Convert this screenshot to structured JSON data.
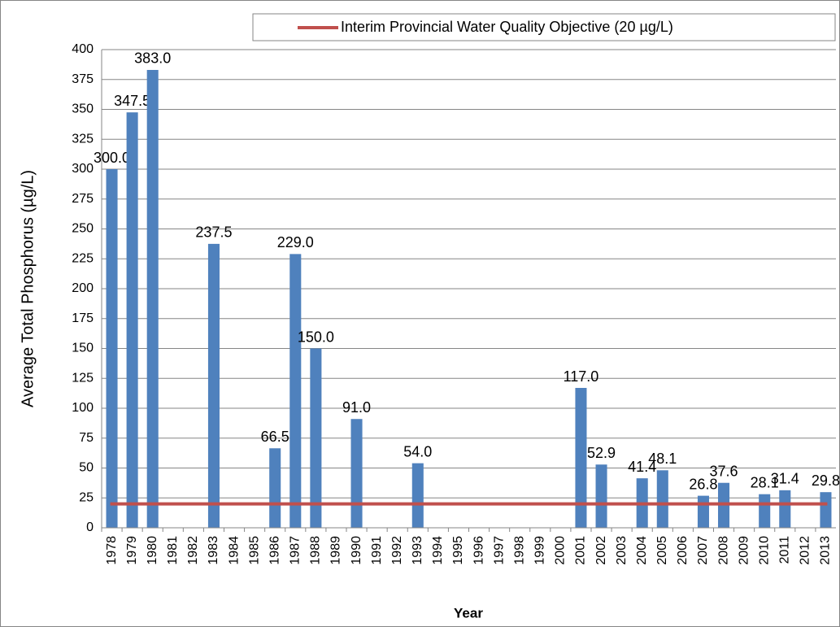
{
  "chart_data": {
    "type": "bar",
    "x_label": "Year",
    "y_label": "Average  Total Phosphorus (µg/L)",
    "categories": [
      "1978",
      "1979",
      "1980",
      "1981",
      "1982",
      "1983",
      "1984",
      "1985",
      "1986",
      "1987",
      "1988",
      "1989",
      "1990",
      "1991",
      "1992",
      "1993",
      "1994",
      "1995",
      "1996",
      "1997",
      "1998",
      "1999",
      "2000",
      "2001",
      "2002",
      "2003",
      "2004",
      "2005",
      "2006",
      "2007",
      "2008",
      "2009",
      "2010",
      "2011",
      "2012",
      "2013"
    ],
    "series": [
      {
        "type": "bar",
        "color": "#4f81bd",
        "values": [
          300,
          347.5,
          383,
          null,
          null,
          237.5,
          null,
          null,
          66.5,
          229,
          150,
          null,
          91,
          null,
          null,
          54,
          null,
          null,
          null,
          null,
          null,
          null,
          null,
          117,
          52.9,
          null,
          41.4,
          48.1,
          null,
          26.8,
          37.6,
          null,
          28.1,
          31.4,
          null,
          29.8
        ],
        "value_labels": [
          "300.0",
          "347.5",
          "383.0",
          null,
          null,
          "237.5",
          null,
          null,
          "66.5",
          "229.0",
          "150.0",
          null,
          "91.0",
          null,
          null,
          "54.0",
          null,
          null,
          null,
          null,
          null,
          null,
          null,
          "117.0",
          "52.9",
          null,
          "41.4",
          "48.1",
          null,
          "26.8",
          "37.6",
          null,
          "28.1",
          "31.4",
          null,
          "29.8"
        ]
      },
      {
        "type": "line",
        "name": "Interim Provincial Water Quality Objective (20 µg/L)",
        "color": "#c0504d",
        "values": [
          20,
          20,
          20,
          20,
          20,
          20,
          20,
          20,
          20,
          20,
          20,
          20,
          20,
          20,
          20,
          20,
          20,
          20,
          20,
          20,
          20,
          20,
          20,
          20,
          20,
          20,
          20,
          20,
          20,
          20,
          20,
          20,
          20,
          20,
          20,
          20
        ]
      }
    ],
    "ylim": [
      0,
      400
    ],
    "yticks": [
      0,
      25,
      50,
      75,
      100,
      125,
      150,
      175,
      200,
      225,
      250,
      275,
      300,
      325,
      350,
      375,
      400
    ],
    "grid": true,
    "legend": "top-right"
  }
}
